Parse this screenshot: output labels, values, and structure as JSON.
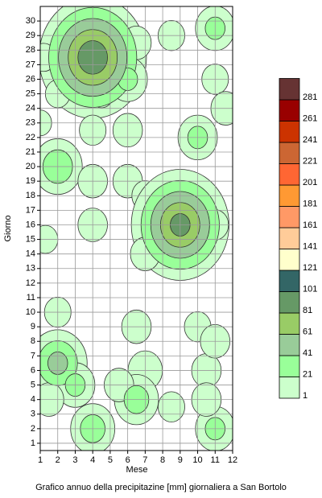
{
  "chart_data": {
    "type": "contour",
    "title": "Grafico annuo della precipitazine [mm] giornaliera a San Bortolo",
    "xlabel": "Mese",
    "ylabel": "Giorno",
    "xlim": [
      1,
      12
    ],
    "ylim": [
      0.5,
      31
    ],
    "xticks": [
      1,
      2,
      3,
      4,
      5,
      6,
      7,
      8,
      9,
      10,
      11,
      12
    ],
    "yticks": [
      1,
      2,
      3,
      4,
      5,
      6,
      7,
      8,
      9,
      10,
      11,
      12,
      13,
      14,
      15,
      16,
      17,
      18,
      19,
      20,
      21,
      22,
      23,
      24,
      25,
      26,
      27,
      28,
      29,
      30
    ],
    "grid": true,
    "x": [
      3.5,
      4,
      6.5,
      8.5,
      11,
      1.2,
      6,
      11,
      2,
      4.5,
      1,
      4,
      6,
      10,
      11.6,
      2,
      4,
      6,
      7,
      9,
      11,
      4,
      7,
      1.3,
      2,
      6.5,
      7,
      10,
      10.5,
      11,
      2,
      3,
      1.5,
      4,
      6.5,
      8.5,
      11,
      10.5,
      5.5
    ],
    "y": [
      29.5,
      27.5,
      28.5,
      29,
      29.5,
      27.5,
      26,
      26,
      25,
      25,
      23,
      22.5,
      22.5,
      22,
      24,
      20,
      19,
      19,
      18,
      16,
      16,
      16,
      14,
      15,
      10,
      9,
      6,
      9,
      6,
      8,
      6.5,
      5,
      4,
      2,
      4,
      3.5,
      2,
      4,
      5
    ],
    "values": [
      15,
      95,
      15,
      12,
      25,
      10,
      25,
      12,
      10,
      10,
      8,
      12,
      15,
      25,
      15,
      35,
      15,
      15,
      12,
      85,
      12,
      15,
      15,
      10,
      12,
      15,
      20,
      12,
      15,
      15,
      45,
      25,
      15,
      30,
      30,
      12,
      25,
      15,
      15
    ],
    "levels": [
      1,
      21,
      41,
      61,
      81,
      101,
      121,
      141,
      161,
      181,
      201,
      221,
      241,
      261,
      281
    ],
    "colors": [
      "#ccffcc",
      "#99ff99",
      "#99cc99",
      "#99cc66",
      "#669966",
      "#336666",
      "#ffffcc",
      "#ffcc99",
      "#ff9966",
      "#ff9933",
      "#ff6633",
      "#cc6633",
      "#cc3300",
      "#990000",
      "#663333"
    ]
  }
}
